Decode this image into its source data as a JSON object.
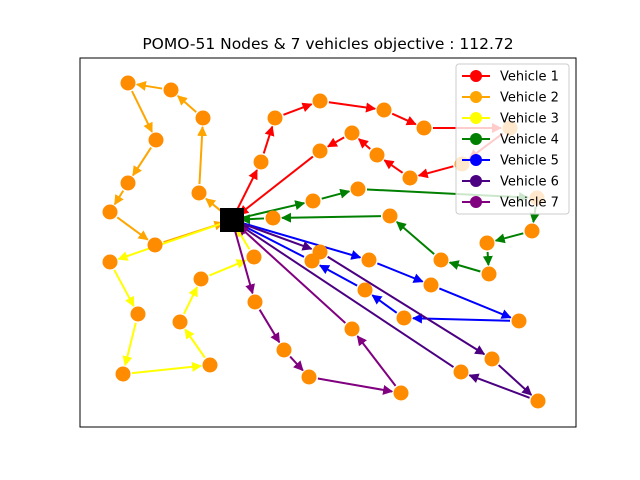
{
  "figure": {
    "title": "POMO-51 Nodes & 7 vehicles objective : 112.72"
  },
  "colors": {
    "node_fill": "#ff8c00",
    "depot_fill": "#000000",
    "background": "#ffffff"
  },
  "legend": {
    "placement": "top-right",
    "entries": [
      {
        "label": "Vehicle 1",
        "color": "#ff0000"
      },
      {
        "label": "Vehicle 2",
        "color": "#ffa500"
      },
      {
        "label": "Vehicle 3",
        "color": "#ffff00"
      },
      {
        "label": "Vehicle 4",
        "color": "#008000"
      },
      {
        "label": "Vehicle 5",
        "color": "#0000ff"
      },
      {
        "label": "Vehicle 6",
        "color": "#4b0082"
      },
      {
        "label": "Vehicle 7",
        "color": "#800080"
      }
    ]
  },
  "chart_data": {
    "type": "scatter",
    "title": "POMO-51 Nodes & 7 vehicles objective : 112.72",
    "depot": [
      232,
      220
    ],
    "routes": [
      {
        "name": "Vehicle 1",
        "color": "#ff0000",
        "stops": [
          [
            232,
            220
          ],
          [
            261,
            162
          ],
          [
            275,
            118
          ],
          [
            320,
            101
          ],
          [
            384,
            110
          ],
          [
            424,
            128
          ],
          [
            510,
            128
          ],
          [
            462,
            164
          ],
          [
            410,
            178
          ],
          [
            377,
            155
          ],
          [
            352,
            133
          ],
          [
            320,
            151
          ],
          [
            232,
            220
          ]
        ]
      },
      {
        "name": "Vehicle 2",
        "color": "#ffa500",
        "stops": [
          [
            232,
            220
          ],
          [
            199,
            193
          ],
          [
            203,
            118
          ],
          [
            171,
            90
          ],
          [
            128,
            83
          ],
          [
            156,
            140
          ],
          [
            128,
            183
          ],
          [
            110,
            212
          ],
          [
            155,
            245
          ],
          [
            232,
            220
          ]
        ]
      },
      {
        "name": "Vehicle 3",
        "color": "#ffff00",
        "stops": [
          [
            232,
            220
          ],
          [
            110,
            262
          ],
          [
            138,
            314
          ],
          [
            123,
            374
          ],
          [
            210,
            365
          ],
          [
            180,
            322
          ],
          [
            201,
            279
          ],
          [
            254,
            257
          ],
          [
            232,
            220
          ]
        ]
      },
      {
        "name": "Vehicle 4",
        "color": "#008000",
        "stops": [
          [
            232,
            220
          ],
          [
            313,
            201
          ],
          [
            358,
            189
          ],
          [
            537,
            198
          ],
          [
            532,
            231
          ],
          [
            487,
            243
          ],
          [
            489,
            274
          ],
          [
            441,
            260
          ],
          [
            390,
            216
          ],
          [
            273,
            218
          ],
          [
            232,
            220
          ]
        ]
      },
      {
        "name": "Vehicle 5",
        "color": "#0000ff",
        "stops": [
          [
            232,
            220
          ],
          [
            369,
            260
          ],
          [
            431,
            285
          ],
          [
            519,
            321
          ],
          [
            404,
            318
          ],
          [
            365,
            290
          ],
          [
            312,
            261
          ],
          [
            232,
            220
          ]
        ]
      },
      {
        "name": "Vehicle 6",
        "color": "#4b0082",
        "stops": [
          [
            232,
            220
          ],
          [
            320,
            252
          ],
          [
            492,
            359
          ],
          [
            538,
            401
          ],
          [
            461,
            372
          ],
          [
            232,
            220
          ]
        ]
      },
      {
        "name": "Vehicle 7",
        "color": "#800080",
        "stops": [
          [
            232,
            220
          ],
          [
            255,
            302
          ],
          [
            284,
            350
          ],
          [
            309,
            377
          ],
          [
            401,
            393
          ],
          [
            352,
            329
          ],
          [
            232,
            220
          ]
        ]
      }
    ]
  }
}
